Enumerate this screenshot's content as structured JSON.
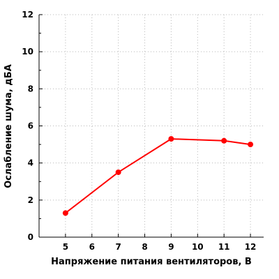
{
  "chart_data": {
    "type": "line",
    "title": "",
    "xlabel": "Напряжение питания вентиляторов, В",
    "ylabel": "Ослабление шума, дБА",
    "xlim": [
      4,
      12.5
    ],
    "ylim": [
      0,
      12
    ],
    "x_ticks": [
      5,
      6,
      7,
      8,
      9,
      10,
      11,
      12
    ],
    "y_ticks": [
      0,
      2,
      4,
      6,
      8,
      10,
      12
    ],
    "grid": true,
    "series": [
      {
        "color": "#ff0000",
        "points": [
          {
            "x": 5,
            "y": 1.3
          },
          {
            "x": 7,
            "y": 3.5
          },
          {
            "x": 9,
            "y": 5.3
          },
          {
            "x": 11,
            "y": 5.2
          },
          {
            "x": 12,
            "y": 5.0
          }
        ]
      }
    ]
  }
}
